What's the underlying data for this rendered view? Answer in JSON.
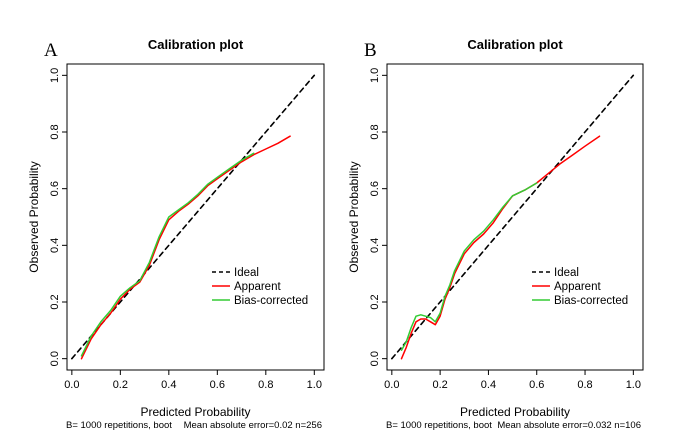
{
  "chart_data": [
    {
      "panel": "A",
      "type": "line",
      "title": "Calibration plot",
      "xlabel": "Predicted Probability",
      "ylabel": "Observed Probability",
      "xlim": [
        -0.02,
        1.04
      ],
      "ylim": [
        -0.04,
        1.04
      ],
      "xticks": [
        0.0,
        0.2,
        0.4,
        0.6,
        0.8,
        1.0
      ],
      "xtick_labels": [
        "0.0",
        "0.2",
        "0.4",
        "0.6",
        "0.8",
        "1.0"
      ],
      "yticks": [
        0.0,
        0.2,
        0.4,
        0.6,
        0.8,
        1.0
      ],
      "ytick_labels": [
        "0.0",
        "0.2",
        "0.4",
        "0.6",
        "0.8",
        "1.0"
      ],
      "footer_left": "B= 1000 repetitions, boot",
      "footer_right": "Mean absolute error=0.02 n=256",
      "legend": {
        "position": "bottom-right",
        "entries": [
          "Ideal",
          "Apparent",
          "Bias-corrected"
        ]
      },
      "series": [
        {
          "name": "Ideal",
          "style": "dashed",
          "color": "#000000",
          "x": [
            0,
            1
          ],
          "y": [
            0,
            1
          ]
        },
        {
          "name": "Apparent",
          "style": "solid",
          "color": "#ff0000",
          "x": [
            0.04,
            0.08,
            0.12,
            0.16,
            0.2,
            0.24,
            0.28,
            0.32,
            0.36,
            0.4,
            0.44,
            0.48,
            0.52,
            0.56,
            0.6,
            0.65,
            0.7,
            0.75,
            0.8,
            0.85,
            0.9
          ],
          "y": [
            0.0,
            0.07,
            0.12,
            0.16,
            0.21,
            0.245,
            0.27,
            0.33,
            0.42,
            0.49,
            0.52,
            0.545,
            0.575,
            0.61,
            0.635,
            0.665,
            0.695,
            0.72,
            0.74,
            0.76,
            0.785
          ]
        },
        {
          "name": "Bias-corrected",
          "style": "solid",
          "color": "#33cc33",
          "x": [
            0.04,
            0.08,
            0.12,
            0.16,
            0.2,
            0.24,
            0.28,
            0.32,
            0.36,
            0.4,
            0.44,
            0.48,
            0.52,
            0.56,
            0.6,
            0.65,
            0.7,
            0.75
          ],
          "y": [
            0.01,
            0.08,
            0.13,
            0.17,
            0.22,
            0.25,
            0.275,
            0.34,
            0.43,
            0.5,
            0.525,
            0.55,
            0.58,
            0.615,
            0.64,
            0.67,
            0.7,
            0.725
          ]
        }
      ]
    },
    {
      "panel": "B",
      "type": "line",
      "title": "Calibration plot",
      "xlabel": "Predicted Probability",
      "ylabel": "Observed Probability",
      "xlim": [
        -0.02,
        1.04
      ],
      "ylim": [
        -0.04,
        1.04
      ],
      "xticks": [
        0.0,
        0.2,
        0.4,
        0.6,
        0.8,
        1.0
      ],
      "xtick_labels": [
        "0.0",
        "0.2",
        "0.4",
        "0.6",
        "0.8",
        "1.0"
      ],
      "yticks": [
        0.0,
        0.2,
        0.4,
        0.6,
        0.8,
        1.0
      ],
      "ytick_labels": [
        "0.0",
        "0.2",
        "0.4",
        "0.6",
        "0.8",
        "1.0"
      ],
      "footer_left": "B= 1000 repetitions, boot",
      "footer_right": "Mean absolute error=0.032 n=106",
      "legend": {
        "position": "bottom-right",
        "entries": [
          "Ideal",
          "Apparent",
          "Bias-corrected"
        ]
      },
      "series": [
        {
          "name": "Ideal",
          "style": "dashed",
          "color": "#000000",
          "x": [
            0,
            1
          ],
          "y": [
            0,
            1
          ]
        },
        {
          "name": "Apparent",
          "style": "solid",
          "color": "#ff0000",
          "x": [
            0.04,
            0.06,
            0.08,
            0.1,
            0.12,
            0.14,
            0.16,
            0.18,
            0.2,
            0.22,
            0.24,
            0.26,
            0.3,
            0.34,
            0.38,
            0.42,
            0.46,
            0.5,
            0.55,
            0.6,
            0.65,
            0.7,
            0.75,
            0.8,
            0.86
          ],
          "y": [
            0.0,
            0.04,
            0.09,
            0.13,
            0.14,
            0.14,
            0.13,
            0.12,
            0.15,
            0.21,
            0.25,
            0.3,
            0.37,
            0.41,
            0.44,
            0.48,
            0.53,
            0.575,
            0.595,
            0.62,
            0.655,
            0.69,
            0.72,
            0.75,
            0.785
          ]
        },
        {
          "name": "Bias-corrected",
          "style": "solid",
          "color": "#33cc33",
          "x": [
            0.04,
            0.06,
            0.08,
            0.1,
            0.12,
            0.14,
            0.16,
            0.18,
            0.2,
            0.22,
            0.24,
            0.26,
            0.3,
            0.34,
            0.38,
            0.42,
            0.46,
            0.5,
            0.55,
            0.6
          ],
          "y": [
            0.03,
            0.06,
            0.11,
            0.15,
            0.155,
            0.15,
            0.145,
            0.13,
            0.16,
            0.22,
            0.26,
            0.31,
            0.38,
            0.42,
            0.45,
            0.49,
            0.535,
            0.575,
            0.595,
            0.62
          ]
        }
      ]
    }
  ]
}
